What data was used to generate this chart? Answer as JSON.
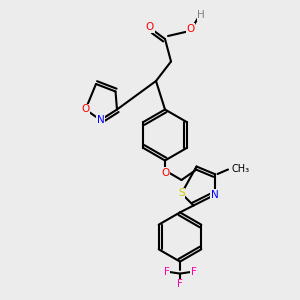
{
  "bg_color": "#ececec",
  "bond_color": "#000000",
  "bond_lw": 1.5,
  "colors": {
    "O": "#ff0000",
    "N": "#0000ff",
    "S": "#cccc00",
    "F": "#ff00aa",
    "H": "#808080",
    "C": "#000000"
  },
  "font_size": 7.5
}
